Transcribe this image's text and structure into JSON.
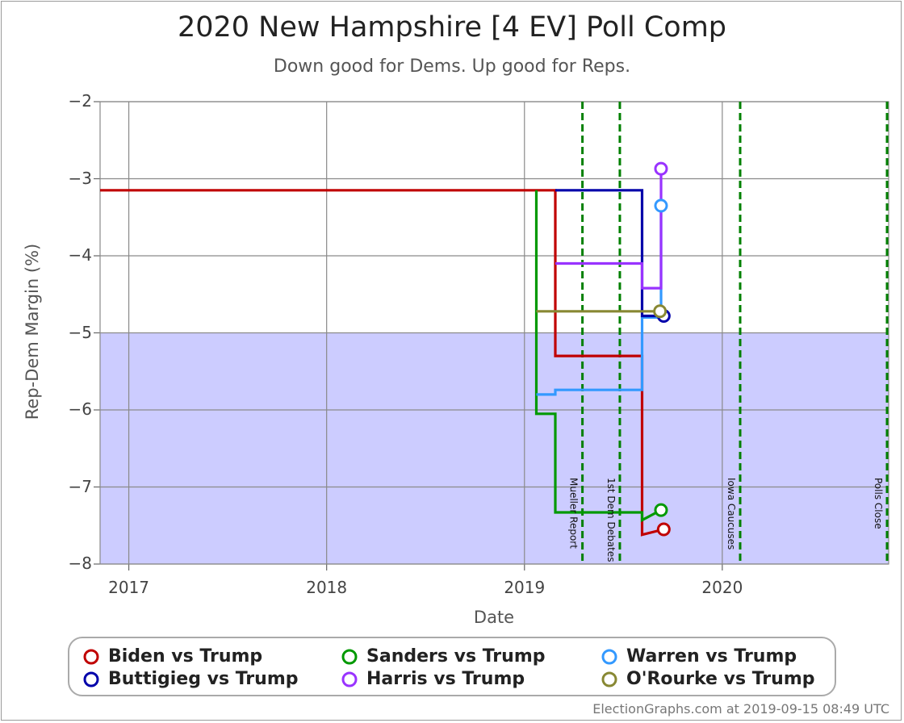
{
  "title": "2020 New Hampshire [4 EV] Poll Comp",
  "subtitle": "Down good for Dems. Up good for Reps.",
  "footer": "ElectionGraphs.com at 2019-09-15 08:49 UTC",
  "chart_data": {
    "type": "line",
    "title": "2020 New Hampshire [4 EV] Poll Comp",
    "subtitle": "Down good for Dems. Up good for Reps.",
    "xlabel": "Date",
    "ylabel": "Rep-Dem Margin (%)",
    "x_ticks": [
      "2017",
      "2018",
      "2019",
      "2020"
    ],
    "y_ticks": [
      "−2",
      "−3",
      "−4",
      "−5",
      "−6",
      "−7",
      "−8"
    ],
    "xlim": [
      "2016-11-09",
      "2020-11-03"
    ],
    "ylim": [
      -8,
      -2
    ],
    "y_inverted": true,
    "grid": true,
    "shaded_band": {
      "from": -8,
      "to": -5,
      "color": "#ccccff"
    },
    "events": [
      {
        "label": "Mueller Report",
        "date": "2019-04-18"
      },
      {
        "label": "1st Dem Debates",
        "date": "2019-06-26"
      },
      {
        "label": "Iowa Caucuses",
        "date": "2020-02-03"
      },
      {
        "label": "Polls Close",
        "date": "2020-11-03"
      }
    ],
    "series": [
      {
        "name": "Biden vs Trump",
        "color": "#c00000",
        "x": [
          "2016-11-09",
          "2019-02-27",
          "2019-02-27",
          "2019-08-06",
          "2019-08-06",
          "2019-09-15"
        ],
        "y": [
          -3.15,
          -3.15,
          -5.3,
          -5.3,
          -7.62,
          -7.55
        ]
      },
      {
        "name": "Sanders vs Trump",
        "color": "#009900",
        "x": [
          "2019-01-23",
          "2019-01-23",
          "2019-02-27",
          "2019-02-27",
          "2019-08-06",
          "2019-08-06",
          "2019-09-10"
        ],
        "y": [
          -3.15,
          -6.05,
          -6.05,
          -7.33,
          -7.33,
          -7.43,
          -7.3
        ]
      },
      {
        "name": "Warren vs Trump",
        "color": "#3399ff",
        "x": [
          "2019-01-23",
          "2019-02-27",
          "2019-02-27",
          "2019-08-06",
          "2019-08-06",
          "2019-09-10",
          "2019-09-10"
        ],
        "y": [
          -5.8,
          -5.8,
          -5.74,
          -5.74,
          -4.8,
          -4.8,
          -3.35
        ]
      },
      {
        "name": "Buttigieg vs Trump",
        "color": "#0000aa",
        "x": [
          "2019-02-27",
          "2019-08-06",
          "2019-08-06",
          "2019-09-15"
        ],
        "y": [
          -3.15,
          -3.15,
          -4.78,
          -4.78
        ]
      },
      {
        "name": "Harris vs Trump",
        "color": "#9933ff",
        "x": [
          "2019-02-27",
          "2019-08-06",
          "2019-08-06",
          "2019-09-10",
          "2019-09-10"
        ],
        "y": [
          -4.1,
          -4.1,
          -4.42,
          -4.42,
          -2.87
        ]
      },
      {
        "name": "O'Rourke vs Trump",
        "color": "#888833",
        "x": [
          "2019-01-23",
          "2019-09-08"
        ],
        "y": [
          -4.72,
          -4.72
        ]
      }
    ]
  }
}
